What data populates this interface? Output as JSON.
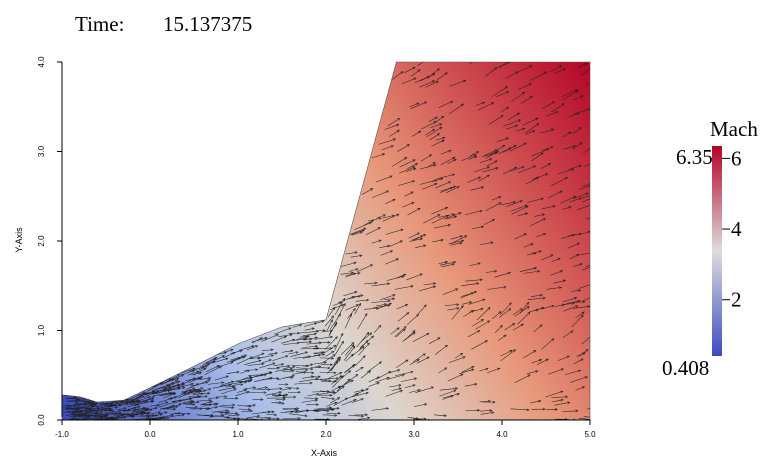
{
  "header": {
    "time_label": "Time:",
    "time_value": "15.137375"
  },
  "chart_data": {
    "type": "heatmap",
    "title": "",
    "xlabel": "X-Axis",
    "ylabel": "Y-Axis",
    "xlim": [
      -1.0,
      5.0
    ],
    "ylim": [
      0.0,
      4.0
    ],
    "x_ticks": [
      "-1.0",
      "0.0",
      "1.0",
      "2.0",
      "3.0",
      "4.0",
      "5.0"
    ],
    "y_ticks": [
      "0.0",
      "1.0",
      "2.0",
      "3.0",
      "4.0"
    ],
    "scalar_field": "Mach",
    "vector_field": "velocity glyphs (arrows)",
    "colormap": [
      "#3b4cc0",
      "#dddddd",
      "#b40426"
    ],
    "domain_boundary": {
      "lower_wall": [
        [
          -1.0,
          0.0
        ],
        [
          5.0,
          0.0
        ]
      ],
      "left_inlet_top": [
        [
          -1.0,
          0.28
        ],
        [
          -0.8,
          0.26
        ]
      ],
      "upper_wall": [
        [
          -0.8,
          0.26
        ],
        [
          -0.6,
          0.2
        ],
        [
          -0.3,
          0.22
        ],
        [
          0.0,
          0.36
        ],
        [
          0.5,
          0.6
        ],
        [
          1.0,
          0.85
        ],
        [
          1.5,
          1.04
        ],
        [
          2.0,
          1.12
        ]
      ],
      "upper_oblique_wall": [
        [
          2.0,
          1.12
        ],
        [
          2.8,
          4.0
        ]
      ],
      "top_outlet": [
        [
          2.8,
          4.0
        ],
        [
          5.0,
          4.0
        ]
      ],
      "right_outlet": [
        [
          5.0,
          4.0
        ],
        [
          5.0,
          0.0
        ]
      ]
    },
    "colorbar": {
      "title": "Mach",
      "min_label": "0.408",
      "max_label": "6.35",
      "min": 0.408,
      "max": 6.35,
      "ticks": [
        2,
        4,
        6
      ],
      "tick_labels": [
        "2",
        "4",
        "6"
      ],
      "placement": "right"
    }
  }
}
